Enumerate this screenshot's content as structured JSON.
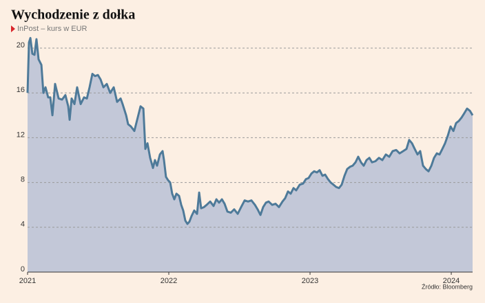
{
  "chart_data": {
    "type": "area",
    "title": "Wychodzenie z dołka",
    "subtitle": "InPost – kurs w EUR",
    "source": "Źródło: Bloomberg",
    "color": "#4e7a99",
    "fill": "#c3c8d8",
    "grid": true,
    "x": [
      2021.0,
      2021.01,
      2021.02,
      2021.034,
      2021.049,
      2021.063,
      2021.078,
      2021.098,
      2021.112,
      2021.127,
      2021.146,
      2021.161,
      2021.176,
      2021.195,
      2021.22,
      2021.244,
      2021.268,
      2021.288,
      2021.298,
      2021.312,
      2021.332,
      2021.351,
      2021.376,
      2021.4,
      2021.42,
      2021.439,
      2021.459,
      2021.478,
      2021.498,
      2021.517,
      2021.537,
      2021.561,
      2021.585,
      2021.61,
      2021.634,
      2021.659,
      2021.673,
      2021.698,
      2021.712,
      2021.732,
      2021.756,
      2021.78,
      2021.8,
      2021.82,
      2021.834,
      2021.849,
      2021.868,
      2021.888,
      2021.902,
      2021.917,
      2021.937,
      2021.956,
      2021.966,
      2021.98,
      2021.995,
      2022.01,
      2022.024,
      2022.039,
      2022.054,
      2022.073,
      2022.088,
      2022.102,
      2022.117,
      2022.132,
      2022.146,
      2022.161,
      2022.18,
      2022.2,
      2022.215,
      2022.229,
      2022.249,
      2022.268,
      2022.293,
      2022.317,
      2022.337,
      2022.356,
      2022.376,
      2022.395,
      2022.415,
      2022.439,
      2022.463,
      2022.488,
      2022.512,
      2022.537,
      2022.561,
      2022.585,
      2022.61,
      2022.629,
      2022.649,
      2022.668,
      2022.688,
      2022.707,
      2022.732,
      2022.756,
      2022.78,
      2022.805,
      2022.824,
      2022.844,
      2022.863,
      2022.883,
      2022.902,
      2022.927,
      2022.951,
      2022.971,
      2022.99,
      2023.01,
      2023.029,
      2023.049,
      2023.068,
      2023.088,
      2023.107,
      2023.127,
      2023.146,
      2023.166,
      2023.185,
      2023.205,
      2023.224,
      2023.244,
      2023.263,
      2023.283,
      2023.302,
      2023.322,
      2023.341,
      2023.361,
      2023.38,
      2023.4,
      2023.42,
      2023.439,
      2023.463,
      2023.488,
      2023.512,
      2023.537,
      2023.561,
      2023.585,
      2023.61,
      2023.634,
      2023.659,
      2023.683,
      2023.702,
      2023.722,
      2023.741,
      2023.761,
      2023.78,
      2023.8,
      2023.82,
      2023.839,
      2023.859,
      2023.878,
      2023.898,
      2023.917,
      2023.937,
      2023.956,
      2023.976,
      2023.995,
      2024.015,
      2024.034,
      2024.054,
      2024.073,
      2024.093,
      2024.112,
      2024.132,
      2024.151
    ],
    "values": [
      16,
      20.5,
      20.9,
      19.5,
      19.4,
      20.8,
      19.0,
      18.5,
      16.0,
      16.5,
      15.6,
      15.6,
      14.0,
      16.8,
      15.5,
      15.4,
      15.8,
      14.8,
      13.6,
      15.5,
      15.0,
      16.5,
      15.0,
      15.6,
      15.5,
      16.5,
      17.7,
      17.5,
      17.6,
      17.2,
      16.5,
      16.8,
      16.0,
      16.5,
      15.2,
      15.5,
      15.0,
      14.0,
      13.2,
      13.0,
      12.6,
      13.8,
      14.8,
      14.6,
      11.0,
      11.5,
      10.2,
      9.3,
      10.0,
      9.5,
      10.5,
      10.8,
      10.0,
      8.5,
      8.2,
      8.0,
      7.0,
      6.5,
      7.0,
      6.8,
      6.0,
      5.5,
      4.6,
      4.3,
      4.5,
      5.0,
      5.5,
      5.2,
      7.1,
      5.7,
      5.8,
      6.0,
      6.3,
      5.9,
      6.5,
      6.2,
      6.5,
      6.1,
      5.4,
      5.3,
      5.6,
      5.2,
      5.8,
      6.4,
      6.3,
      6.4,
      6.0,
      5.6,
      5.1,
      5.8,
      6.2,
      6.3,
      6.0,
      6.1,
      5.8,
      6.3,
      6.6,
      7.2,
      7.0,
      7.5,
      7.3,
      7.8,
      7.9,
      8.3,
      8.4,
      8.8,
      9.0,
      8.9,
      9.1,
      8.6,
      8.7,
      8.3,
      8.0,
      7.8,
      7.6,
      7.5,
      7.8,
      8.6,
      9.2,
      9.4,
      9.5,
      9.8,
      10.3,
      9.8,
      9.5,
      10.0,
      10.2,
      9.8,
      9.9,
      10.2,
      10.0,
      10.5,
      10.3,
      10.8,
      10.9,
      10.6,
      10.8,
      11.0,
      11.8,
      11.5,
      11.0,
      10.5,
      10.8,
      9.5,
      9.2,
      9.0,
      9.5,
      10.2,
      10.6,
      10.5,
      11.0,
      11.5,
      12.2,
      13.0,
      12.6,
      13.3,
      13.5,
      13.8,
      14.2,
      14.6,
      14.4,
      14.0
    ],
    "xlim": [
      2021,
      2024.151
    ],
    "xticks": [
      2021,
      2022,
      2023,
      2024
    ],
    "ylim": [
      0,
      20
    ],
    "yticks": [
      0,
      4,
      8,
      12,
      16,
      20
    ]
  }
}
